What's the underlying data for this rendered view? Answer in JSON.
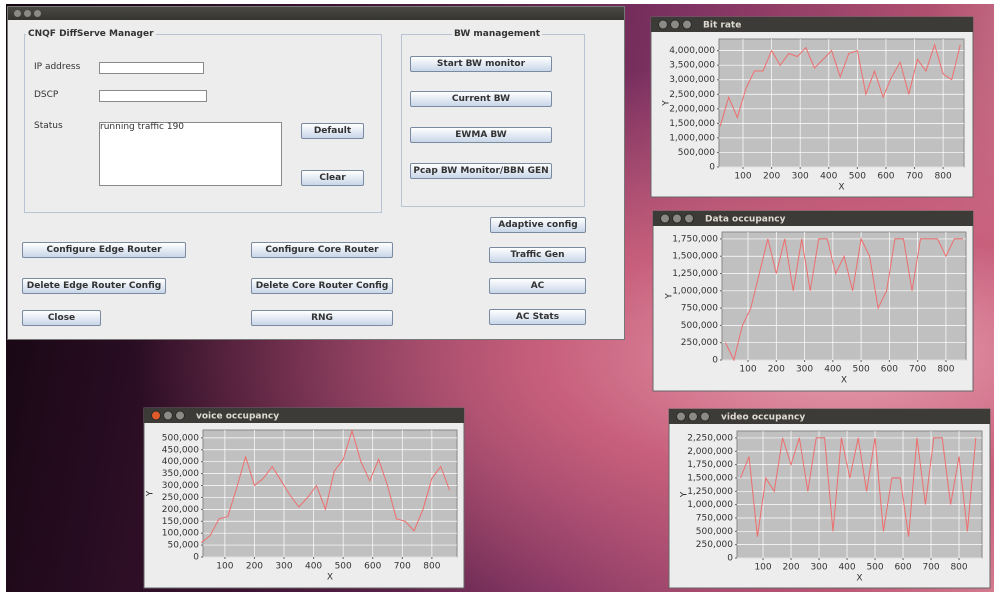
{
  "main_window": {
    "manager_group": {
      "title": "CNQF DiffServe Manager",
      "ip_label": "IP address",
      "dscp_label": "DSCP",
      "status_label": "Status",
      "status_text": "running traffic 190",
      "default_button": "Default",
      "clear_button": "Clear"
    },
    "bw_group": {
      "title": "BW management",
      "buttons": [
        "Start BW monitor",
        "Current BW",
        "EWMA BW",
        "Pcap BW Monitor/BBN GEN"
      ]
    },
    "right_buttons": [
      "Adaptive config",
      "Traffic Gen",
      "AC",
      "AC Stats"
    ],
    "bottom_buttons": [
      "Configure Edge Router",
      "Configure Core Router",
      "Delete Edge Router Config",
      "Delete Core Router Config",
      "Close",
      "RNG"
    ]
  },
  "chart_data": [
    {
      "type": "line",
      "title": "Bit rate",
      "x_label": "X",
      "y_label": "Y",
      "color": "#ee6e6e",
      "grid": true,
      "x": [
        20,
        50,
        80,
        110,
        140,
        170,
        200,
        230,
        260,
        290,
        320,
        350,
        380,
        410,
        440,
        470,
        500,
        530,
        560,
        590,
        620,
        650,
        680,
        710,
        740,
        770,
        800,
        830,
        860
      ],
      "values": [
        1400000,
        2400000,
        1700000,
        2700000,
        3300000,
        3300000,
        4000000,
        3500000,
        3900000,
        3800000,
        4100000,
        3400000,
        3700000,
        4000000,
        3100000,
        3900000,
        4000000,
        2500000,
        3300000,
        2400000,
        3100000,
        3600000,
        2500000,
        3700000,
        3300000,
        4200000,
        3200000,
        3000000,
        4200000
      ],
      "xlim": [
        16,
        873
      ],
      "ylim": [
        0,
        4400000
      ],
      "xticks": [
        100,
        200,
        300,
        400,
        500,
        600,
        700,
        800
      ],
      "yticks": [
        0,
        {
          "value": 500000,
          "label": "500,000"
        },
        {
          "value": 1000000,
          "label": "1,000,000"
        },
        {
          "value": 1500000,
          "label": "1,500,000"
        },
        {
          "value": 2000000,
          "label": "2,000,000"
        },
        {
          "value": 2500000,
          "label": "2,500,000"
        },
        {
          "value": 3000000,
          "label": "3,000,000"
        },
        {
          "value": 3500000,
          "label": "3,500,000"
        },
        {
          "value": 4000000,
          "label": "4,000,000"
        }
      ]
    },
    {
      "type": "line",
      "title": "Data occupancy",
      "x_label": "X",
      "y_label": "Y",
      "color": "#ee6e6e",
      "grid": true,
      "x": [
        20,
        50,
        80,
        110,
        140,
        170,
        200,
        230,
        260,
        290,
        320,
        350,
        380,
        410,
        440,
        470,
        500,
        530,
        560,
        590,
        620,
        650,
        680,
        710,
        740,
        770,
        800,
        830,
        860
      ],
      "values": [
        250000,
        0,
        500000,
        750000,
        1250000,
        1750000,
        1250000,
        1750000,
        1000000,
        1750000,
        1000000,
        1750000,
        1750000,
        1250000,
        1500000,
        1000000,
        1750000,
        1500000,
        750000,
        1000000,
        1750000,
        1750000,
        1000000,
        1750000,
        1750000,
        1750000,
        1500000,
        1750000,
        1750000
      ],
      "xlim": [
        8,
        871
      ],
      "ylim": [
        0,
        1850000
      ],
      "xticks": [
        100,
        200,
        300,
        400,
        500,
        600,
        700,
        800
      ],
      "yticks": [
        0,
        {
          "value": 250000,
          "label": "250,000"
        },
        {
          "value": 500000,
          "label": "500,000"
        },
        {
          "value": 750000,
          "label": "750,000"
        },
        {
          "value": 1000000,
          "label": "1,000,000"
        },
        {
          "value": 1250000,
          "label": "1,250,000"
        },
        {
          "value": 1500000,
          "label": "1,500,000"
        },
        {
          "value": 1750000,
          "label": "1,750,000"
        }
      ]
    },
    {
      "type": "line",
      "title": "voice occupancy",
      "x_label": "X",
      "y_label": "Y",
      "color": "#ee6e6e",
      "grid": true,
      "x": [
        20,
        50,
        80,
        110,
        140,
        170,
        200,
        230,
        260,
        290,
        320,
        350,
        380,
        410,
        440,
        470,
        500,
        530,
        560,
        590,
        620,
        650,
        680,
        710,
        740,
        770,
        800,
        830,
        860
      ],
      "values": [
        60000,
        90000,
        160000,
        170000,
        290000,
        420000,
        300000,
        330000,
        380000,
        320000,
        260000,
        210000,
        250000,
        300000,
        200000,
        360000,
        410000,
        530000,
        400000,
        320000,
        410000,
        300000,
        160000,
        150000,
        110000,
        200000,
        330000,
        380000,
        280000
      ],
      "xlim": [
        26,
        885
      ],
      "ylim": [
        0,
        533000
      ],
      "xticks": [
        100,
        200,
        300,
        400,
        500,
        600,
        700,
        800
      ],
      "yticks": [
        0,
        {
          "value": 50000,
          "label": "50,000"
        },
        {
          "value": 100000,
          "label": "100,000"
        },
        {
          "value": 150000,
          "label": "150,000"
        },
        {
          "value": 200000,
          "label": "200,000"
        },
        {
          "value": 250000,
          "label": "250,000"
        },
        {
          "value": 300000,
          "label": "300,000"
        },
        {
          "value": 350000,
          "label": "350,000"
        },
        {
          "value": 400000,
          "label": "400,000"
        },
        {
          "value": 450000,
          "label": "450,000"
        },
        {
          "value": 500000,
          "label": "500,000"
        }
      ]
    },
    {
      "type": "line",
      "title": "video occupancy",
      "x_label": "X",
      "y_label": "Y",
      "color": "#ee6e6e",
      "grid": true,
      "x": [
        20,
        50,
        80,
        110,
        140,
        170,
        200,
        230,
        260,
        290,
        320,
        350,
        380,
        410,
        440,
        470,
        500,
        530,
        560,
        590,
        620,
        650,
        680,
        710,
        740,
        770,
        800,
        830,
        860
      ],
      "values": [
        1500000,
        1900000,
        400000,
        1500000,
        1250000,
        2250000,
        1750000,
        2250000,
        1250000,
        2250000,
        2250000,
        500000,
        2250000,
        1500000,
        2250000,
        1250000,
        2250000,
        500000,
        1500000,
        1500000,
        400000,
        2250000,
        1000000,
        2250000,
        2250000,
        1000000,
        1900000,
        500000,
        2250000
      ],
      "xlim": [
        7,
        882
      ],
      "ylim": [
        0,
        2380000
      ],
      "xticks": [
        100,
        200,
        300,
        400,
        500,
        600,
        700,
        800
      ],
      "yticks": [
        0,
        {
          "value": 250000,
          "label": "250,000"
        },
        {
          "value": 500000,
          "label": "500,000"
        },
        {
          "value": 750000,
          "label": "750,000"
        },
        {
          "value": 1000000,
          "label": "1,000,000"
        },
        {
          "value": 1250000,
          "label": "1,250,000"
        },
        {
          "value": 1500000,
          "label": "1,500,000"
        },
        {
          "value": 1750000,
          "label": "1,750,000"
        },
        {
          "value": 2000000,
          "label": "2,000,000"
        },
        {
          "value": 2250000,
          "label": "2,250,000"
        }
      ]
    }
  ]
}
